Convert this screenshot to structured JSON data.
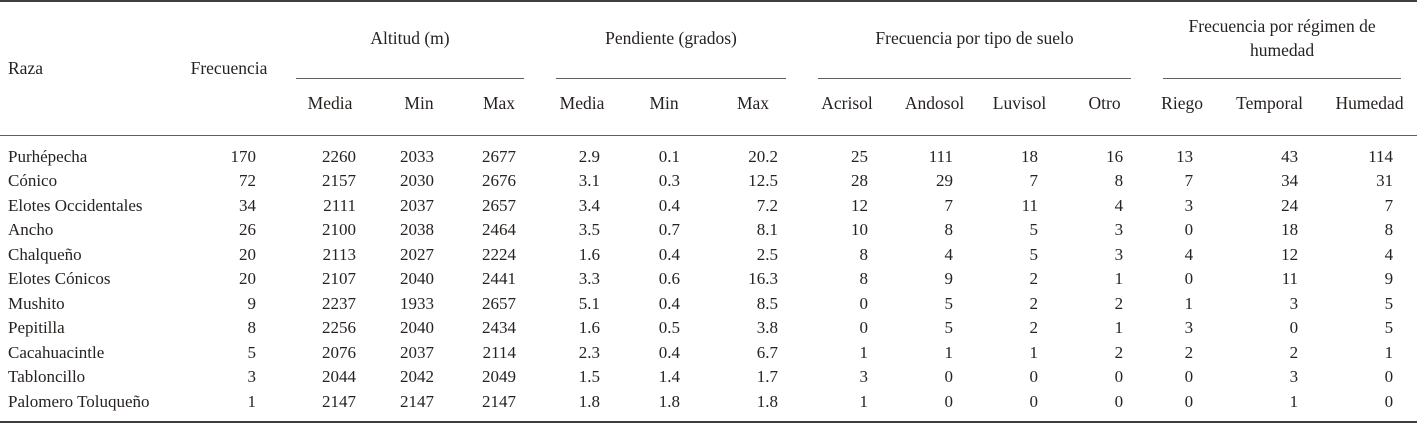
{
  "table": {
    "raza_header": "Raza",
    "frecuencia_header": "Frecuencia",
    "groups": [
      {
        "label": "Altitud (m)",
        "cols": [
          "Media",
          "Min",
          "Max"
        ]
      },
      {
        "label": "Pendiente (grados)",
        "cols": [
          "Media",
          "Min",
          "Max"
        ]
      },
      {
        "label": "Frecuencia por tipo de suelo",
        "cols": [
          "Acrisol",
          "Andosol",
          "Luvisol",
          "Otro"
        ]
      },
      {
        "label": "Frecuencia por régimen de humedad",
        "cols": [
          "Riego",
          "Temporal",
          "Humedad"
        ]
      }
    ],
    "rows": [
      {
        "raza": "Purhépecha",
        "values": [
          "170",
          "2260",
          "2033",
          "2677",
          "2.9",
          "0.1",
          "20.2",
          "25",
          "111",
          "18",
          "16",
          "13",
          "43",
          "114"
        ]
      },
      {
        "raza": "Cónico",
        "values": [
          "72",
          "2157",
          "2030",
          "2676",
          "3.1",
          "0.3",
          "12.5",
          "28",
          "29",
          "7",
          "8",
          "7",
          "34",
          "31"
        ]
      },
      {
        "raza": "Elotes Occidentales",
        "values": [
          "34",
          "2111",
          "2037",
          "2657",
          "3.4",
          "0.4",
          "7.2",
          "12",
          "7",
          "11",
          "4",
          "3",
          "24",
          "7"
        ]
      },
      {
        "raza": "Ancho",
        "values": [
          "26",
          "2100",
          "2038",
          "2464",
          "3.5",
          "0.7",
          "8.1",
          "10",
          "8",
          "5",
          "3",
          "0",
          "18",
          "8"
        ]
      },
      {
        "raza": "Chalqueño",
        "values": [
          "20",
          "2113",
          "2027",
          "2224",
          "1.6",
          "0.4",
          "2.5",
          "8",
          "4",
          "5",
          "3",
          "4",
          "12",
          "4"
        ]
      },
      {
        "raza": "Elotes Cónicos",
        "values": [
          "20",
          "2107",
          "2040",
          "2441",
          "3.3",
          "0.6",
          "16.3",
          "8",
          "9",
          "2",
          "1",
          "0",
          "11",
          "9"
        ]
      },
      {
        "raza": "Mushito",
        "values": [
          "9",
          "2237",
          "1933",
          "2657",
          "5.1",
          "0.4",
          "8.5",
          "0",
          "5",
          "2",
          "2",
          "1",
          "3",
          "5"
        ]
      },
      {
        "raza": "Pepitilla",
        "values": [
          "8",
          "2256",
          "2040",
          "2434",
          "1.6",
          "0.5",
          "3.8",
          "0",
          "5",
          "2",
          "1",
          "3",
          "0",
          "5"
        ]
      },
      {
        "raza": "Cacahuacintle",
        "values": [
          "5",
          "2076",
          "2037",
          "2114",
          "2.3",
          "0.4",
          "6.7",
          "1",
          "1",
          "1",
          "2",
          "2",
          "2",
          "1"
        ]
      },
      {
        "raza": "Tabloncillo",
        "values": [
          "3",
          "2044",
          "2042",
          "2049",
          "1.5",
          "1.4",
          "1.7",
          "3",
          "0",
          "0",
          "0",
          "0",
          "3",
          "0"
        ]
      },
      {
        "raza": "Palomero Toluqueño",
        "values": [
          "1",
          "2147",
          "2147",
          "2147",
          "1.8",
          "1.8",
          "1.8",
          "1",
          "0",
          "0",
          "0",
          "0",
          "1",
          "0"
        ]
      }
    ],
    "colors": {
      "text": "#262220",
      "light_rule": "#5f5f5f",
      "heavy_rule": "#3f3f3f",
      "background": "#ffffff"
    }
  }
}
